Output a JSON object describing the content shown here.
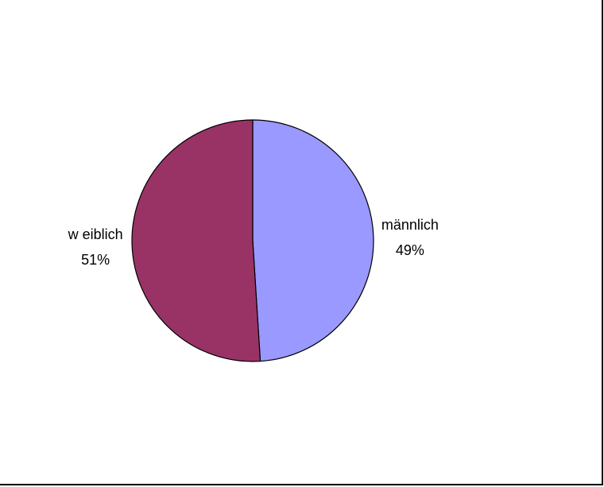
{
  "chart_data": {
    "type": "pie",
    "slices": [
      {
        "label": "männlich",
        "value": 49,
        "value_label": "49%",
        "color": "#9999ff"
      },
      {
        "label": "w eiblich",
        "value": 51,
        "value_label": "51%",
        "color": "#993366"
      }
    ],
    "start_angle": "12 o'clock",
    "direction": "clockwise",
    "legend": "none",
    "title": ""
  }
}
